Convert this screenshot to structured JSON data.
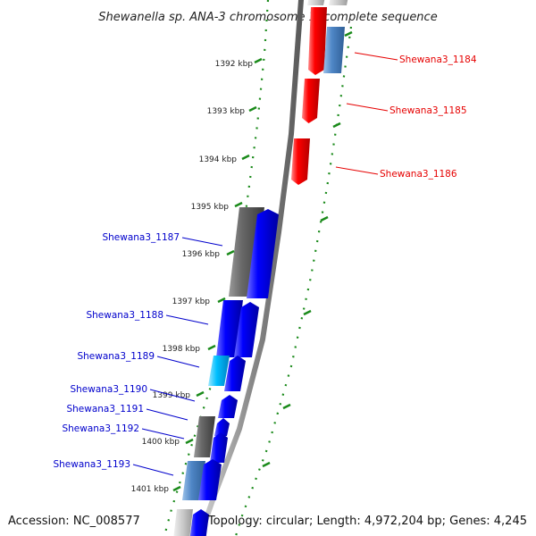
{
  "title": "Shewanella sp. ANA-3 chromosome 1, complete sequence",
  "footer": {
    "accession": "Accession: NC_008577",
    "summary": "Topology: circular; Length: 4,972,204 bp; Genes: 4,245"
  },
  "ticks": [
    "1392 kbp",
    "1393 kbp",
    "1394 kbp",
    "1395 kbp",
    "1396 kbp",
    "1397 kbp",
    "1398 kbp",
    "1399 kbp",
    "1400 kbp",
    "1401 kbp"
  ],
  "genes": [
    {
      "label": "Shewana3_1184",
      "strand": "forward",
      "color": "#e60000"
    },
    {
      "label": "Shewana3_1185",
      "strand": "forward",
      "color": "#e60000"
    },
    {
      "label": "Shewana3_1186",
      "strand": "forward",
      "color": "#e60000"
    },
    {
      "label": "Shewana3_1187",
      "strand": "reverse",
      "color": "#0000cc"
    },
    {
      "label": "Shewana3_1188",
      "strand": "reverse",
      "color": "#0000cc"
    },
    {
      "label": "Shewana3_1189",
      "strand": "reverse",
      "color": "#0000cc"
    },
    {
      "label": "Shewana3_1190",
      "strand": "reverse",
      "color": "#0000cc"
    },
    {
      "label": "Shewana3_1191",
      "strand": "reverse",
      "color": "#0000cc"
    },
    {
      "label": "Shewana3_1192",
      "strand": "reverse",
      "color": "#0000cc"
    },
    {
      "label": "Shewana3_1193",
      "strand": "reverse",
      "color": "#0000cc"
    }
  ],
  "colors": {
    "forward_cds": "#ff0000",
    "reverse_cds": "#0000ee",
    "cog_gray": "#666666",
    "cog_steelblue": "#4f86c6",
    "cog_cyan": "#00bfff",
    "backbone": "#8a8a8a",
    "tick": "#1a8a1a"
  }
}
